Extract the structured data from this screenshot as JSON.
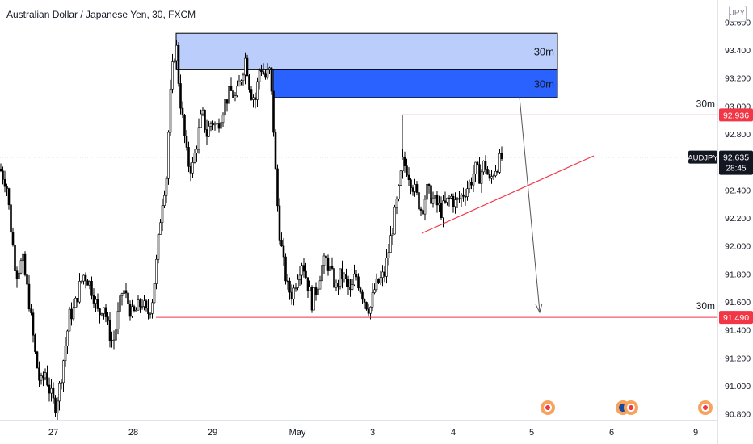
{
  "title": "Australian Dollar / Japanese Yen, 30, FXCM",
  "currency": "JPY",
  "colors": {
    "candle": "#000000",
    "zone_light": "#bbcefb",
    "zone_dark": "#2962ff",
    "level_line": "#f23645",
    "axis_text": "#131722"
  },
  "price_labels": {
    "resistance": "92.936",
    "support": "91.490",
    "current_symbol": "AUDJPY",
    "current_price": "92.635",
    "countdown": "28:45"
  },
  "zone_labels": [
    "30m",
    "30m"
  ],
  "level_labels": [
    "30m",
    "30m"
  ],
  "event_icons": [
    "economic-event-icon",
    "australia-flag-event-icon",
    "economic-event-icon"
  ],
  "chart_data": {
    "type": "candlestick",
    "symbol": "AUDJPY",
    "timeframe": "30",
    "ylim": [
      90.75,
      93.6
    ],
    "yticks": [
      90.8,
      91.0,
      91.2,
      91.4,
      91.6,
      91.8,
      92.0,
      92.2,
      92.4,
      92.6,
      92.8,
      93.0,
      93.2,
      93.4,
      93.6
    ],
    "ytick_labels": [
      "90.800",
      "91.000",
      "91.200",
      "91.400",
      "91.600",
      "91.800",
      "92.000",
      "92.200",
      "92.400",
      "92.600",
      "92.800",
      "93.000",
      "93.200",
      "93.400",
      "93.600"
    ],
    "x_labels": [
      "27",
      "28",
      "29",
      "May",
      "3",
      "4",
      "5",
      "6",
      "9"
    ],
    "close_path": [
      {
        "t": 0,
        "p": 92.55
      },
      {
        "t": 8,
        "p": 92.45
      },
      {
        "t": 14,
        "p": 92.1
      },
      {
        "t": 20,
        "p": 91.8
      },
      {
        "t": 28,
        "p": 91.9
      },
      {
        "t": 36,
        "p": 91.6
      },
      {
        "t": 44,
        "p": 91.2
      },
      {
        "t": 50,
        "p": 91.0
      },
      {
        "t": 56,
        "p": 91.1
      },
      {
        "t": 62,
        "p": 90.95
      },
      {
        "t": 68,
        "p": 90.85
      },
      {
        "t": 74,
        "p": 91.0
      },
      {
        "t": 80,
        "p": 91.25
      },
      {
        "t": 86,
        "p": 91.5
      },
      {
        "t": 92,
        "p": 91.55
      },
      {
        "t": 98,
        "p": 91.7
      },
      {
        "t": 104,
        "p": 91.8
      },
      {
        "t": 110,
        "p": 91.75
      },
      {
        "t": 116,
        "p": 91.65
      },
      {
        "t": 122,
        "p": 91.5
      },
      {
        "t": 128,
        "p": 91.6
      },
      {
        "t": 134,
        "p": 91.4
      },
      {
        "t": 140,
        "p": 91.3
      },
      {
        "t": 146,
        "p": 91.5
      },
      {
        "t": 152,
        "p": 91.7
      },
      {
        "t": 158,
        "p": 91.6
      },
      {
        "t": 164,
        "p": 91.5
      },
      {
        "t": 170,
        "p": 91.55
      },
      {
        "t": 176,
        "p": 91.6
      },
      {
        "t": 182,
        "p": 91.5
      },
      {
        "t": 188,
        "p": 91.6
      },
      {
        "t": 194,
        "p": 91.9
      },
      {
        "t": 200,
        "p": 92.3
      },
      {
        "t": 206,
        "p": 92.5
      },
      {
        "t": 210,
        "p": 93.0
      },
      {
        "t": 214,
        "p": 93.3
      },
      {
        "t": 218,
        "p": 93.45
      },
      {
        "t": 222,
        "p": 93.1
      },
      {
        "t": 226,
        "p": 92.9
      },
      {
        "t": 232,
        "p": 92.6
      },
      {
        "t": 238,
        "p": 92.55
      },
      {
        "t": 244,
        "p": 92.75
      },
      {
        "t": 250,
        "p": 92.95
      },
      {
        "t": 256,
        "p": 92.8
      },
      {
        "t": 262,
        "p": 92.9
      },
      {
        "t": 268,
        "p": 92.85
      },
      {
        "t": 274,
        "p": 92.95
      },
      {
        "t": 280,
        "p": 93.05
      },
      {
        "t": 286,
        "p": 93.1
      },
      {
        "t": 292,
        "p": 93.05
      },
      {
        "t": 298,
        "p": 93.2
      },
      {
        "t": 304,
        "p": 93.35
      },
      {
        "t": 310,
        "p": 93.1
      },
      {
        "t": 316,
        "p": 93.05
      },
      {
        "t": 322,
        "p": 93.3
      },
      {
        "t": 328,
        "p": 93.2
      },
      {
        "t": 334,
        "p": 93.25
      },
      {
        "t": 338,
        "p": 92.9
      },
      {
        "t": 342,
        "p": 92.4
      },
      {
        "t": 346,
        "p": 92.1
      },
      {
        "t": 350,
        "p": 91.9
      },
      {
        "t": 356,
        "p": 91.7
      },
      {
        "t": 362,
        "p": 91.65
      },
      {
        "t": 368,
        "p": 91.8
      },
      {
        "t": 374,
        "p": 91.9
      },
      {
        "t": 380,
        "p": 91.75
      },
      {
        "t": 386,
        "p": 91.6
      },
      {
        "t": 392,
        "p": 91.7
      },
      {
        "t": 398,
        "p": 91.85
      },
      {
        "t": 404,
        "p": 91.9
      },
      {
        "t": 410,
        "p": 91.8
      },
      {
        "t": 416,
        "p": 91.7
      },
      {
        "t": 422,
        "p": 91.8
      },
      {
        "t": 428,
        "p": 91.75
      },
      {
        "t": 434,
        "p": 91.65
      },
      {
        "t": 440,
        "p": 91.8
      },
      {
        "t": 446,
        "p": 91.7
      },
      {
        "t": 452,
        "p": 91.6
      },
      {
        "t": 458,
        "p": 91.55
      },
      {
        "t": 464,
        "p": 91.7
      },
      {
        "t": 470,
        "p": 91.75
      },
      {
        "t": 476,
        "p": 91.8
      },
      {
        "t": 482,
        "p": 92.0
      },
      {
        "t": 488,
        "p": 92.2
      },
      {
        "t": 494,
        "p": 92.4
      },
      {
        "t": 498,
        "p": 92.6
      },
      {
        "t": 504,
        "p": 92.55
      },
      {
        "t": 510,
        "p": 92.45
      },
      {
        "t": 516,
        "p": 92.35
      },
      {
        "t": 522,
        "p": 92.25
      },
      {
        "t": 528,
        "p": 92.4
      },
      {
        "t": 534,
        "p": 92.35
      },
      {
        "t": 540,
        "p": 92.3
      },
      {
        "t": 546,
        "p": 92.25
      },
      {
        "t": 552,
        "p": 92.3
      },
      {
        "t": 558,
        "p": 92.35
      },
      {
        "t": 564,
        "p": 92.3
      },
      {
        "t": 570,
        "p": 92.35
      },
      {
        "t": 576,
        "p": 92.4
      },
      {
        "t": 582,
        "p": 92.45
      },
      {
        "t": 588,
        "p": 92.55
      },
      {
        "t": 594,
        "p": 92.5
      },
      {
        "t": 600,
        "p": 92.6
      },
      {
        "t": 606,
        "p": 92.45
      },
      {
        "t": 612,
        "p": 92.55
      },
      {
        "t": 618,
        "p": 92.6
      },
      {
        "t": 622,
        "p": 92.635
      }
    ],
    "supply_zones": [
      {
        "top": 93.52,
        "bottom": 93.26,
        "label": "30m"
      },
      {
        "top": 93.26,
        "bottom": 93.06,
        "label": "30m"
      }
    ],
    "levels": [
      {
        "price": 92.936,
        "label": "30m"
      },
      {
        "price": 91.49,
        "label": "30m"
      }
    ],
    "current_price": 92.635
  }
}
